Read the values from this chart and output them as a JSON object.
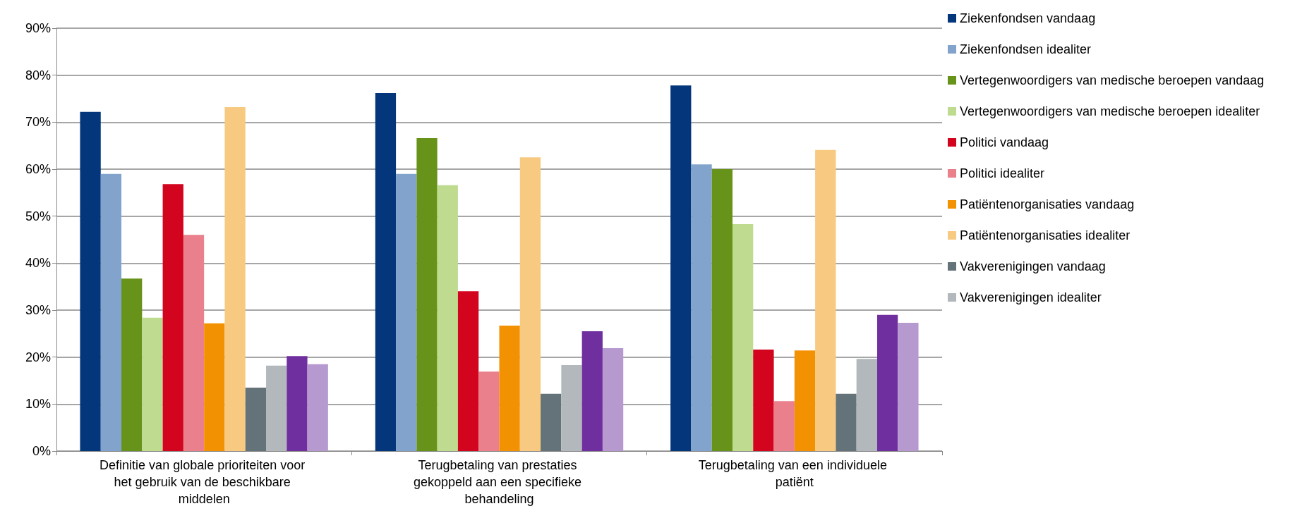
{
  "chart_data": {
    "type": "bar",
    "categories": [
      "Definitie van globale prioriteiten voor het gebruik van de beschikbare middelen",
      "Terugbetaling van prestaties gekoppeld aan een specifieke behandeling",
      "Terugbetaling van een individuele patiënt"
    ],
    "series": [
      {
        "name": "Ziekenfondsen vandaag",
        "color": "#03367a",
        "values": [
          72.2,
          76.2,
          77.8
        ]
      },
      {
        "name": "Ziekenfondsen idealiter",
        "color": "#81a3cc",
        "values": [
          59,
          59,
          61
        ]
      },
      {
        "name": "Vertegenwoordigers van medische beroepen vandaag",
        "color": "#67931a",
        "values": [
          36.7,
          66.6,
          60
        ]
      },
      {
        "name": "Vertegenwoordigers van medische beroepen idealiter",
        "color": "#bedb90",
        "values": [
          28.4,
          56.6,
          48.3
        ]
      },
      {
        "name": "Politici vandaag",
        "color": "#d2041e",
        "values": [
          56.8,
          34,
          21.6
        ]
      },
      {
        "name": "Politici idealiter",
        "color": "#e9808c",
        "values": [
          46,
          16.9,
          10.6
        ]
      },
      {
        "name": "Patiëntenorganisaties vandaag",
        "color": "#f29202",
        "values": [
          27.2,
          26.7,
          21.4
        ]
      },
      {
        "name": "Patiëntenorganisaties idealiter",
        "color": "#f7c981",
        "values": [
          73.2,
          62.5,
          64.1
        ]
      },
      {
        "name": "Vakverenigingen vandaag",
        "color": "#647279",
        "values": [
          13.5,
          12.2,
          12.2
        ]
      },
      {
        "name": "Vakverenigingen idealiter",
        "color": "#b2b8bb",
        "values": [
          18.2,
          18.3,
          19.6
        ]
      },
      {
        "color": "#702f9f",
        "values": [
          20.2,
          25.5,
          29
        ]
      },
      {
        "color": "#b699cf",
        "values": [
          18.5,
          21.9,
          27.3
        ]
      }
    ],
    "ylim": [
      0,
      90
    ],
    "yticks": [
      {
        "value": 0,
        "label": "0%"
      },
      {
        "value": 10,
        "label": "10%"
      },
      {
        "value": 20,
        "label": "20%"
      },
      {
        "value": 30,
        "label": "30%"
      },
      {
        "value": 40,
        "label": "40%"
      },
      {
        "value": 50,
        "label": "50%"
      },
      {
        "value": 60,
        "label": "60%"
      },
      {
        "value": 70,
        "label": "70%"
      },
      {
        "value": 80,
        "label": "80%"
      },
      {
        "value": 90,
        "label": "90%"
      }
    ],
    "grid": "y",
    "legend": "right"
  }
}
